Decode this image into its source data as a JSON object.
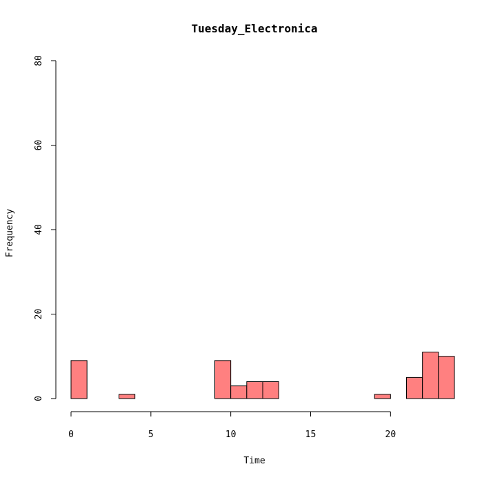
{
  "chart_data": {
    "type": "bar",
    "title": "Tuesday_Electronica",
    "xlabel": "Time",
    "ylabel": "Frequency",
    "xlim": [
      0,
      24
    ],
    "ylim": [
      0,
      80
    ],
    "x_ticks": [
      0,
      5,
      10,
      15,
      20
    ],
    "y_ticks": [
      0,
      20,
      40,
      60,
      80
    ],
    "bin_width": 1,
    "bins": [
      {
        "start": 0,
        "value": 9
      },
      {
        "start": 1,
        "value": 0
      },
      {
        "start": 2,
        "value": 0
      },
      {
        "start": 3,
        "value": 1
      },
      {
        "start": 4,
        "value": 0
      },
      {
        "start": 5,
        "value": 0
      },
      {
        "start": 6,
        "value": 0
      },
      {
        "start": 7,
        "value": 0
      },
      {
        "start": 8,
        "value": 0
      },
      {
        "start": 9,
        "value": 9
      },
      {
        "start": 10,
        "value": 3
      },
      {
        "start": 11,
        "value": 4
      },
      {
        "start": 12,
        "value": 4
      },
      {
        "start": 13,
        "value": 0
      },
      {
        "start": 14,
        "value": 0
      },
      {
        "start": 15,
        "value": 0
      },
      {
        "start": 16,
        "value": 0
      },
      {
        "start": 17,
        "value": 0
      },
      {
        "start": 18,
        "value": 0
      },
      {
        "start": 19,
        "value": 1
      },
      {
        "start": 20,
        "value": 0
      },
      {
        "start": 21,
        "value": 5
      },
      {
        "start": 22,
        "value": 11
      },
      {
        "start": 23,
        "value": 10
      }
    ],
    "bar_color": "#ff8080",
    "bar_stroke": "#000000",
    "grid": false,
    "legend": "none"
  }
}
